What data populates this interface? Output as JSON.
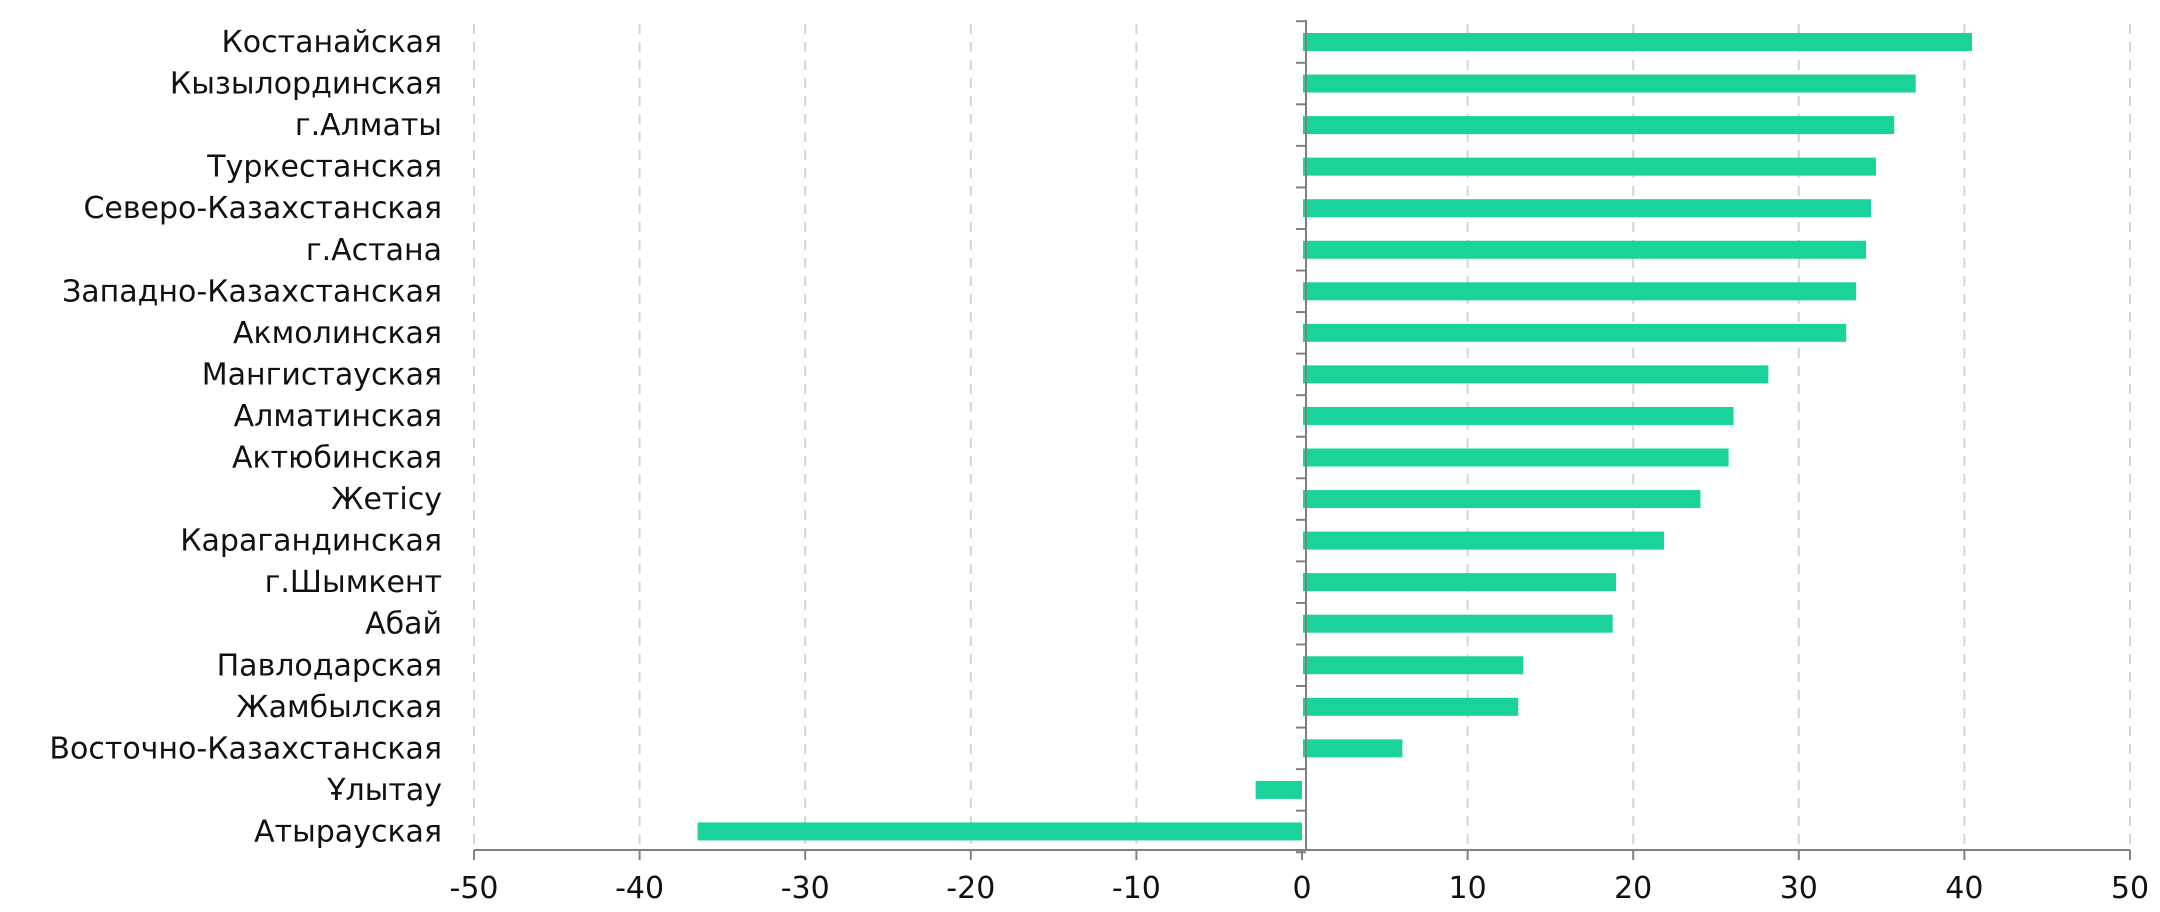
{
  "chart_data": {
    "type": "bar",
    "orientation": "horizontal",
    "title": "",
    "xlabel": "",
    "ylabel": "",
    "xlim": [
      -50,
      50
    ],
    "x_ticks": [
      -50,
      -40,
      -30,
      -20,
      -10,
      0,
      10,
      20,
      30,
      40,
      50
    ],
    "tick_labels": [
      "-50",
      "-40",
      "-30",
      "-20",
      "-10",
      "0",
      "10",
      "20",
      "30",
      "40",
      "50"
    ],
    "grid": "vertical dashed",
    "legend": "none",
    "bar_color": "#1ad39a",
    "categories": [
      "Костанайская",
      "Кызылординская",
      "г.Алматы",
      "Туркестанская",
      "Северо-Казахстанская",
      "г.Астана",
      "Западно-Казахстанская",
      "Акмолинская",
      "Мангистауская",
      "Алматинская",
      "Актюбинская",
      "Жетісу",
      "Карагандинская",
      "г.Шымкент",
      "Абай",
      "Павлодарская",
      "Жамбылская",
      "Восточно-Казахстанская",
      "Ұлытау",
      "Атырауская"
    ],
    "values": [
      40.4,
      37.0,
      35.7,
      34.6,
      34.3,
      34.0,
      33.4,
      32.8,
      28.1,
      26.0,
      25.7,
      24.0,
      21.8,
      18.9,
      18.7,
      13.3,
      13.0,
      6.0,
      -2.8,
      -36.5
    ]
  }
}
